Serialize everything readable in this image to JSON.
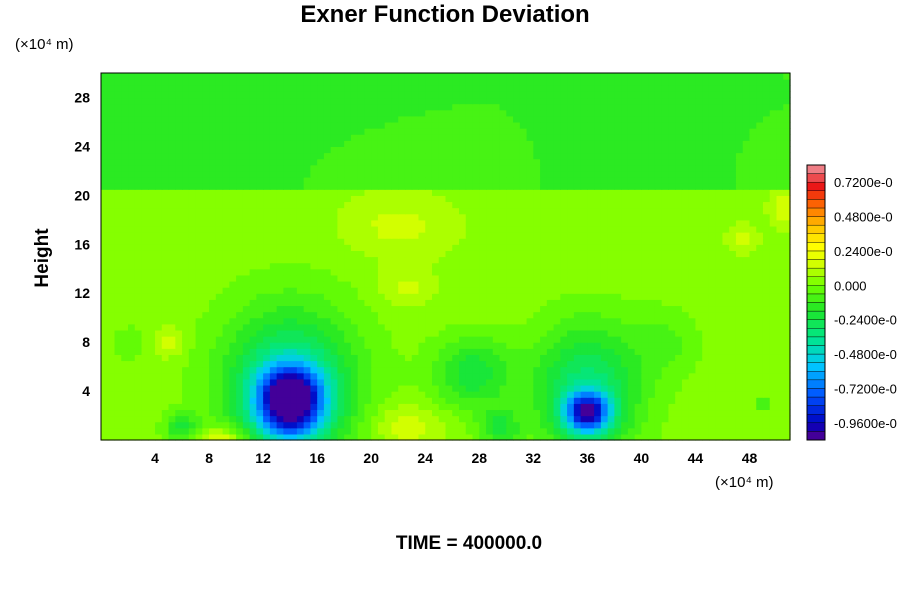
{
  "chart_data": {
    "type": "heatmap",
    "title": "Exner Function Deviation",
    "xlabel": "",
    "ylabel": "Height",
    "x_unit": "(×10⁴ m)",
    "y_unit": "(×10⁴ m)",
    "footer": "TIME = 400000.0",
    "xlim": [
      0,
      51
    ],
    "ylim": [
      0,
      30
    ],
    "x_ticks": [
      4,
      8,
      12,
      16,
      20,
      24,
      28,
      32,
      36,
      40,
      44,
      48
    ],
    "y_ticks": [
      4,
      8,
      12,
      16,
      20,
      24,
      28
    ],
    "x_tick_labels": [
      "4",
      "8",
      "12",
      "16",
      "20",
      "24",
      "28",
      "32",
      "36",
      "40",
      "44",
      "48"
    ],
    "y_tick_labels": [
      "4",
      "8",
      "12",
      "16",
      "20",
      "24",
      "28"
    ],
    "colorbar": {
      "vmin": -1.08,
      "vmax": 0.84,
      "tick_values": [
        0.72,
        0.48,
        0.24,
        0.0,
        -0.24,
        -0.48,
        -0.72,
        -0.96
      ],
      "tick_labels": [
        "0.7200e-0",
        "0.4800e-0",
        "0.2400e-0",
        "0.000",
        "-0.2400e-0",
        "-0.4800e-0",
        "-0.7200e-0",
        "-0.9600e-0"
      ],
      "levels": 32
    },
    "field": {
      "background_lower": 0.04,
      "background_upper": -0.12,
      "interface_height": 20.5,
      "features": [
        {
          "x": 14.0,
          "y": 3.2,
          "amp": -1.02,
          "sx": 2.4,
          "sy": 2.8
        },
        {
          "x": 14.0,
          "y": 4.5,
          "amp": -0.42,
          "sx": 5.2,
          "sy": 6.5
        },
        {
          "x": 36.0,
          "y": 2.3,
          "amp": -0.82,
          "sx": 1.6,
          "sy": 1.6
        },
        {
          "x": 36.0,
          "y": 4.0,
          "amp": -0.38,
          "sx": 4.0,
          "sy": 5.5
        },
        {
          "x": 27.5,
          "y": 5.5,
          "amp": -0.26,
          "sx": 3.0,
          "sy": 3.0
        },
        {
          "x": 29.5,
          "y": 1.0,
          "amp": -0.22,
          "sx": 1.5,
          "sy": 1.5
        },
        {
          "x": 6.0,
          "y": 1.0,
          "amp": -0.22,
          "sx": 1.3,
          "sy": 1.2
        },
        {
          "x": 9.0,
          "y": 0.0,
          "amp": 0.22,
          "sx": 2.0,
          "sy": 1.2
        },
        {
          "x": 22.5,
          "y": 1.2,
          "amp": 0.14,
          "sx": 2.6,
          "sy": 1.8
        },
        {
          "x": 5.0,
          "y": 8.0,
          "amp": 0.12,
          "sx": 1.2,
          "sy": 1.2
        },
        {
          "x": 22.5,
          "y": 12.5,
          "amp": 0.1,
          "sx": 2.0,
          "sy": 1.5
        },
        {
          "x": 22.0,
          "y": 17.5,
          "amp": 0.1,
          "sx": 4.0,
          "sy": 2.5
        },
        {
          "x": 47.5,
          "y": 16.5,
          "amp": 0.12,
          "sx": 1.0,
          "sy": 1.0
        },
        {
          "x": 50.5,
          "y": 19.0,
          "amp": 0.12,
          "sx": 1.0,
          "sy": 1.5
        },
        {
          "x": 49.0,
          "y": 3.0,
          "amp": -0.2,
          "sx": 0.6,
          "sy": 0.6
        },
        {
          "x": 42.0,
          "y": 8.0,
          "amp": -0.1,
          "sx": 2.5,
          "sy": 3.0
        },
        {
          "x": 2.0,
          "y": 8.0,
          "amp": -0.08,
          "sx": 1.5,
          "sy": 1.5
        }
      ]
    }
  }
}
